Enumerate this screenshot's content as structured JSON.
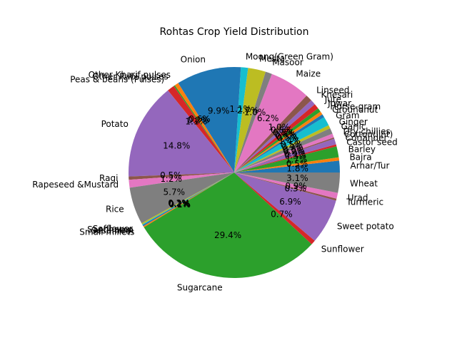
{
  "chart_data": {
    "type": "pie",
    "title": "Rohtas Crop Yield Distribution",
    "start_angle_deg": 0,
    "direction": "counterclockwise",
    "slices": [
      {
        "label": "Arhar/Tur",
        "value": 1.8,
        "pct_label": "1.8%",
        "color": "#1f77b4"
      },
      {
        "label": "Bajra",
        "value": 0.5,
        "pct_label": "0.5%",
        "color": "#ff7f0e"
      },
      {
        "label": "Barley",
        "value": 1.7,
        "pct_label": "1.7%",
        "color": "#2ca02c"
      },
      {
        "label": "Castor seed",
        "value": 0.3,
        "pct_label": "0.3%",
        "color": "#d62728"
      },
      {
        "label": "Coriander",
        "value": 0.9,
        "pct_label": "0.9%",
        "color": "#9467bd"
      },
      {
        "label": "Cotton(lint)",
        "value": 0.2,
        "pct_label": "0.2%",
        "color": "#8c564b"
      },
      {
        "label": "Dry chillies",
        "value": 0.6,
        "pct_label": "0.6%",
        "color": "#e377c2"
      },
      {
        "label": "Garlic",
        "value": 0.9,
        "pct_label": "0.9%",
        "color": "#7f7f7f"
      },
      {
        "label": "Ginger",
        "value": 0.5,
        "pct_label": "0.5%",
        "color": "#bcbd22"
      },
      {
        "label": "Gram",
        "value": 1.4,
        "pct_label": "1.4%",
        "color": "#17becf"
      },
      {
        "label": "Groundnut",
        "value": 0.5,
        "pct_label": "0.5%",
        "color": "#1f77b4"
      },
      {
        "label": "Horse-gram",
        "value": 0.5,
        "pct_label": "0.5%",
        "color": "#ff7f0e"
      },
      {
        "label": "Jowar",
        "value": 0.6,
        "pct_label": "0.6%",
        "color": "#2ca02c"
      },
      {
        "label": "Jute",
        "value": 0.8,
        "pct_label": "0.8%",
        "color": "#d62728"
      },
      {
        "label": "Khesari",
        "value": 0.8,
        "pct_label": "0.8%",
        "color": "#9467bd"
      },
      {
        "label": "Linseed",
        "value": 1.0,
        "pct_label": "1.0%",
        "color": "#8c564b"
      },
      {
        "label": "Maize",
        "value": 6.2,
        "pct_label": "6.2%",
        "color": "#e377c2"
      },
      {
        "label": "Masoor",
        "value": 1.0,
        "pct_label": "1.0%",
        "color": "#7f7f7f"
      },
      {
        "label": "Mesta",
        "value": 2.7,
        "pct_label": "2.7%",
        "color": "#bcbd22"
      },
      {
        "label": "Moong(Green Gram)",
        "value": 1.1,
        "pct_label": "1.1%",
        "color": "#17becf"
      },
      {
        "label": "Onion",
        "value": 9.9,
        "pct_label": "9.9%",
        "color": "#1f77b4"
      },
      {
        "label": "Other Kharif pulses",
        "value": 0.6,
        "pct_label": "0.6%",
        "color": "#ff7f0e"
      },
      {
        "label": "Other Rabi pulses",
        "value": 0.2,
        "pct_label": "0.2%",
        "color": "#2ca02c"
      },
      {
        "label": "Peas & beans (Pulses)",
        "value": 1.1,
        "pct_label": "1.1%",
        "color": "#d62728"
      },
      {
        "label": "Potato",
        "value": 14.8,
        "pct_label": "14.8%",
        "color": "#9467bd"
      },
      {
        "label": "Ragi",
        "value": 0.5,
        "pct_label": "0.5%",
        "color": "#8c564b"
      },
      {
        "label": "Rapeseed &Mustard",
        "value": 1.2,
        "pct_label": "1.2%",
        "color": "#e377c2"
      },
      {
        "label": "Rice",
        "value": 5.7,
        "pct_label": "5.7%",
        "color": "#7f7f7f"
      },
      {
        "label": "Safflower",
        "value": 0.2,
        "pct_label": "0.2%",
        "color": "#bcbd22"
      },
      {
        "label": "Sannhamp",
        "value": 0.1,
        "pct_label": "0.1%",
        "color": "#17becf"
      },
      {
        "label": "Sesamum",
        "value": 0.2,
        "pct_label": "0.2%",
        "color": "#1f77b4"
      },
      {
        "label": "Small millets",
        "value": 0.2,
        "pct_label": "0.2%",
        "color": "#ff7f0e"
      },
      {
        "label": "Sugarcane",
        "value": 29.4,
        "pct_label": "29.4%",
        "color": "#2ca02c"
      },
      {
        "label": "Sunflower",
        "value": 0.7,
        "pct_label": "0.7%",
        "color": "#d62728"
      },
      {
        "label": "Sweet potato",
        "value": 6.9,
        "pct_label": "6.9%",
        "color": "#9467bd"
      },
      {
        "label": "Turmeric",
        "value": 0.3,
        "pct_label": "0.3%",
        "color": "#8c564b"
      },
      {
        "label": "Urad",
        "value": 0.9,
        "pct_label": "0.9%",
        "color": "#e377c2"
      },
      {
        "label": "Wheat",
        "value": 3.1,
        "pct_label": "3.1%",
        "color": "#7f7f7f"
      }
    ]
  }
}
